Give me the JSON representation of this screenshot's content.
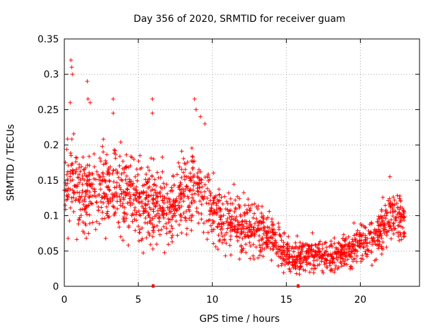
{
  "chart_data": {
    "type": "scatter",
    "title": "Day 356 of 2020, SRMTID for receiver guam",
    "xlabel": "GPS time / hours",
    "ylabel": "SRMTID / TECUs",
    "xlim": [
      0,
      24
    ],
    "ylim": [
      0,
      0.35
    ],
    "x_ticks": [
      0,
      5,
      10,
      15,
      20
    ],
    "x_tick_labels": [
      "0",
      "5",
      "10",
      "15",
      "20"
    ],
    "y_ticks": [
      0,
      0.05,
      0.1,
      0.15,
      0.2,
      0.25,
      0.3,
      0.35
    ],
    "y_tick_labels": [
      "0",
      "0.05",
      "0.1",
      "0.15",
      "0.2",
      "0.25",
      "0.3",
      "0.35"
    ],
    "grid": true,
    "marker": "+",
    "series_color": "#ff0000",
    "axis_markers_x": [
      6.0,
      15.8
    ],
    "profile_hours": [
      0,
      0.5,
      1,
      1.5,
      2,
      2.5,
      3,
      3.5,
      4,
      4.5,
      5,
      5.5,
      6,
      6.5,
      7,
      7.5,
      8,
      8.5,
      9,
      9.5,
      10,
      10.5,
      11,
      11.5,
      12,
      12.5,
      13,
      13.5,
      14,
      14.5,
      15,
      15.5,
      16,
      16.5,
      17,
      17.5,
      18,
      18.5,
      19,
      19.5,
      20,
      20.5,
      21,
      21.5,
      22,
      22.5,
      23
    ],
    "profile_center": [
      0.14,
      0.14,
      0.13,
      0.13,
      0.14,
      0.15,
      0.14,
      0.14,
      0.13,
      0.13,
      0.12,
      0.12,
      0.12,
      0.11,
      0.11,
      0.12,
      0.13,
      0.14,
      0.14,
      0.13,
      0.1,
      0.09,
      0.09,
      0.09,
      0.085,
      0.085,
      0.08,
      0.075,
      0.07,
      0.06,
      0.045,
      0.04,
      0.04,
      0.045,
      0.045,
      0.045,
      0.04,
      0.045,
      0.05,
      0.055,
      0.06,
      0.065,
      0.07,
      0.08,
      0.1,
      0.1,
      0.09
    ],
    "profile_spread": [
      0.05,
      0.06,
      0.05,
      0.05,
      0.05,
      0.05,
      0.05,
      0.05,
      0.05,
      0.05,
      0.05,
      0.05,
      0.05,
      0.045,
      0.045,
      0.05,
      0.05,
      0.05,
      0.05,
      0.05,
      0.04,
      0.04,
      0.035,
      0.035,
      0.035,
      0.035,
      0.035,
      0.03,
      0.03,
      0.025,
      0.02,
      0.02,
      0.02,
      0.02,
      0.02,
      0.02,
      0.02,
      0.02,
      0.02,
      0.025,
      0.025,
      0.025,
      0.03,
      0.03,
      0.035,
      0.03,
      0.03
    ],
    "points_per_hour": 78,
    "outlier_peaks": [
      {
        "x": 0.45,
        "y": 0.32
      },
      {
        "x": 0.5,
        "y": 0.31
      },
      {
        "x": 0.55,
        "y": 0.3
      },
      {
        "x": 0.4,
        "y": 0.26
      },
      {
        "x": 1.55,
        "y": 0.29
      },
      {
        "x": 1.6,
        "y": 0.265
      },
      {
        "x": 1.75,
        "y": 0.26
      },
      {
        "x": 3.3,
        "y": 0.265
      },
      {
        "x": 3.3,
        "y": 0.245
      },
      {
        "x": 5.95,
        "y": 0.265
      },
      {
        "x": 5.95,
        "y": 0.245
      },
      {
        "x": 8.8,
        "y": 0.265
      },
      {
        "x": 8.9,
        "y": 0.25
      },
      {
        "x": 9.2,
        "y": 0.24
      },
      {
        "x": 9.5,
        "y": 0.23
      },
      {
        "x": 22.0,
        "y": 0.155
      }
    ]
  }
}
